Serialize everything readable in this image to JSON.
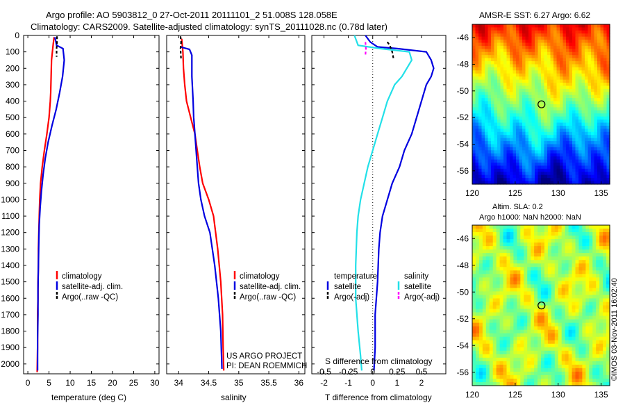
{
  "figure": {
    "title_line1": "Argo profile: AO 5903812_0 27-Oct-2011 20111101_2 51.008S 128.058E",
    "title_line2": "Climatology: CARS2009. Satellite-adjusted climatology: synTS_20111028.nc (0.78d later)",
    "credit": "©IMOS 03-Nov-2011 16:02:40",
    "project_line1": "US ARGO PROJECT",
    "project_line2": "PI: DEAN ROEMMICH"
  },
  "colors": {
    "climatology": "#ff0000",
    "satellite": "#0000e0",
    "argo": "#000000",
    "salinity_satellite": "#22e0e8",
    "salinity_argo": "#ff00ff"
  },
  "chart_data": [
    {
      "id": "temperature",
      "type": "line",
      "xlabel": "temperature (deg C)",
      "ylabel": "",
      "xlim": [
        -1,
        31
      ],
      "ylim": [
        2060,
        0
      ],
      "xticks": [
        0,
        5,
        10,
        15,
        20,
        25,
        30
      ],
      "yticks": [
        0,
        100,
        200,
        300,
        400,
        500,
        600,
        700,
        800,
        900,
        1000,
        1100,
        1200,
        1300,
        1400,
        1500,
        1600,
        1700,
        1800,
        1900,
        2000
      ],
      "legend": [
        "climatology",
        "satellite-adj. clim.",
        "Argo(..raw -QC)"
      ],
      "series": [
        {
          "name": "climatology",
          "color": "#ff0000",
          "x": [
            6.2,
            6.0,
            5.6,
            5.5,
            5.4,
            5.3,
            5.0,
            4.5,
            3.9,
            3.4,
            3.0,
            2.8,
            2.7,
            2.6,
            2.5,
            2.5,
            2.4,
            2.4,
            2.3,
            2.3,
            2.3,
            2.2
          ],
          "y": [
            10,
            50,
            150,
            250,
            350,
            400,
            500,
            600,
            700,
            800,
            900,
            1000,
            1100,
            1200,
            1300,
            1400,
            1500,
            1600,
            1700,
            1800,
            1900,
            2050
          ]
        },
        {
          "name": "satellite-adj. clim.",
          "color": "#0000e0",
          "x": [
            6.4,
            6.8,
            8.3,
            8.6,
            8.2,
            7.5,
            6.7,
            5.7,
            4.8,
            4.1,
            3.6,
            3.2,
            2.9,
            2.7,
            2.6,
            2.5,
            2.4,
            2.4,
            2.3,
            2.3,
            2.3
          ],
          "y": [
            10,
            60,
            80,
            150,
            250,
            350,
            450,
            550,
            650,
            750,
            850,
            950,
            1050,
            1150,
            1250,
            1400,
            1550,
            1700,
            1850,
            1950,
            2040
          ]
        },
        {
          "name": "Argo(..raw -QC)",
          "color": "#000000",
          "dashed": true,
          "x": [
            6.9,
            6.9,
            6.8,
            6.8
          ],
          "y": [
            5,
            40,
            80,
            130
          ]
        }
      ]
    },
    {
      "id": "salinity",
      "type": "line",
      "xlabel": "salinity",
      "ylabel": "",
      "xlim": [
        33.8,
        36.1
      ],
      "ylim": [
        2060,
        0
      ],
      "xticks": [
        34,
        34.5,
        35,
        35.5,
        36
      ],
      "legend": [
        "climatology",
        "satellite-adj. clim.",
        "Argo(..raw -QC)"
      ],
      "series": [
        {
          "name": "climatology",
          "color": "#ff0000",
          "x": [
            34.05,
            34.07,
            34.08,
            34.1,
            34.13,
            34.2,
            34.27,
            34.31,
            34.35,
            34.4,
            34.5,
            34.58,
            34.65,
            34.7,
            34.73,
            34.74,
            34.75
          ],
          "y": [
            20,
            100,
            200,
            300,
            400,
            500,
            600,
            700,
            800,
            900,
            1000,
            1100,
            1300,
            1500,
            1700,
            1900,
            2040
          ]
        },
        {
          "name": "satellite-adj. clim.",
          "color": "#0000e0",
          "x": [
            34.03,
            34.08,
            34.18,
            34.22,
            34.22,
            34.24,
            34.25,
            34.27,
            34.29,
            34.31,
            34.33,
            34.37,
            34.43,
            34.52,
            34.6,
            34.66,
            34.7,
            34.72
          ],
          "y": [
            70,
            75,
            85,
            120,
            250,
            400,
            500,
            600,
            700,
            800,
            900,
            1000,
            1100,
            1200,
            1400,
            1600,
            1800,
            2030
          ]
        },
        {
          "name": "Argo(..raw -QC)",
          "color": "#000000",
          "dashed": true,
          "x": [
            34.03,
            34.04,
            34.03,
            34.04
          ],
          "y": [
            5,
            40,
            80,
            150
          ]
        }
      ]
    },
    {
      "id": "difference",
      "type": "line",
      "xlabel": "T difference from climatology",
      "xlabel_top": "S difference from climatology",
      "xlim": [
        -2.5,
        3.0
      ],
      "ylim": [
        2060,
        0
      ],
      "xticks": [
        -2,
        -1,
        0,
        1,
        2
      ],
      "s_ticks": [
        -0.5,
        -0.25,
        0,
        0.25,
        0.5
      ],
      "legend_temperature_title": "temperature",
      "legend_salinity_title": "salinity",
      "legend_temperature": [
        "satellite",
        "Argo(-adj)"
      ],
      "legend_salinity": [
        "satellite",
        "Argo(-adj)"
      ],
      "series": [
        {
          "name": "temperature satellite",
          "color": "#0000e0",
          "x": [
            -0.3,
            -0.1,
            0.2,
            1.0,
            2.2,
            2.4,
            2.5,
            2.4,
            2.2,
            2.0,
            1.8,
            1.6,
            1.3,
            1.1,
            0.8,
            0.6,
            0.4,
            0.3,
            0.25,
            0.2,
            0.1,
            0.1,
            0.05
          ],
          "y": [
            0,
            40,
            70,
            80,
            100,
            150,
            200,
            250,
            300,
            400,
            500,
            600,
            700,
            800,
            900,
            1000,
            1100,
            1200,
            1300,
            1500,
            1700,
            1900,
            2040
          ]
        },
        {
          "name": "temperature Argo(-adj)",
          "color": "#000000",
          "dashed": true,
          "x": [
            0.6,
            0.7,
            0.8,
            0.85
          ],
          "y": [
            40,
            60,
            100,
            140
          ]
        },
        {
          "name": "salinity satellite",
          "color": "#22e0e8",
          "x": [
            -0.75,
            -0.6,
            0.3,
            1.5,
            1.6,
            1.2,
            0.9,
            0.6,
            0.4,
            0.2,
            0.0,
            -0.2,
            -0.5,
            -0.6,
            -0.65,
            -0.7,
            -0.7,
            -0.6,
            -0.5,
            -0.45
          ],
          "y": [
            0,
            60,
            80,
            100,
            150,
            250,
            300,
            400,
            500,
            600,
            700,
            800,
            1000,
            1100,
            1200,
            1400,
            1600,
            1800,
            1950,
            2040
          ]
        },
        {
          "name": "salinity Argo(-adj)",
          "color": "#ff00ff",
          "dashed": true,
          "x": [
            -0.3,
            -0.28,
            -0.3
          ],
          "y": [
            40,
            80,
            120
          ]
        }
      ]
    },
    {
      "id": "sst_map",
      "type": "heatmap",
      "title": "AMSR-E SST: 6.27 Argo: 6.62",
      "xlim": [
        120,
        136
      ],
      "ylim": [
        -57,
        -45
      ],
      "xticks": [
        120,
        125,
        130,
        135
      ],
      "yticks": [
        -46,
        -48,
        -50,
        -52,
        -54,
        -56
      ],
      "marker": {
        "lon": 128.058,
        "lat": -51.008
      }
    },
    {
      "id": "sla_map",
      "type": "heatmap",
      "title_line1": "Altim. SLA: 0.2",
      "title_line2": "Argo h1000: NaN h2000: NaN",
      "xlim": [
        120,
        136
      ],
      "ylim": [
        -57,
        -45
      ],
      "xticks": [
        120,
        125,
        130,
        135
      ],
      "yticks": [
        -46,
        -48,
        -50,
        -52,
        -54,
        -56
      ],
      "marker": {
        "lon": 128.058,
        "lat": -51.008
      }
    }
  ]
}
